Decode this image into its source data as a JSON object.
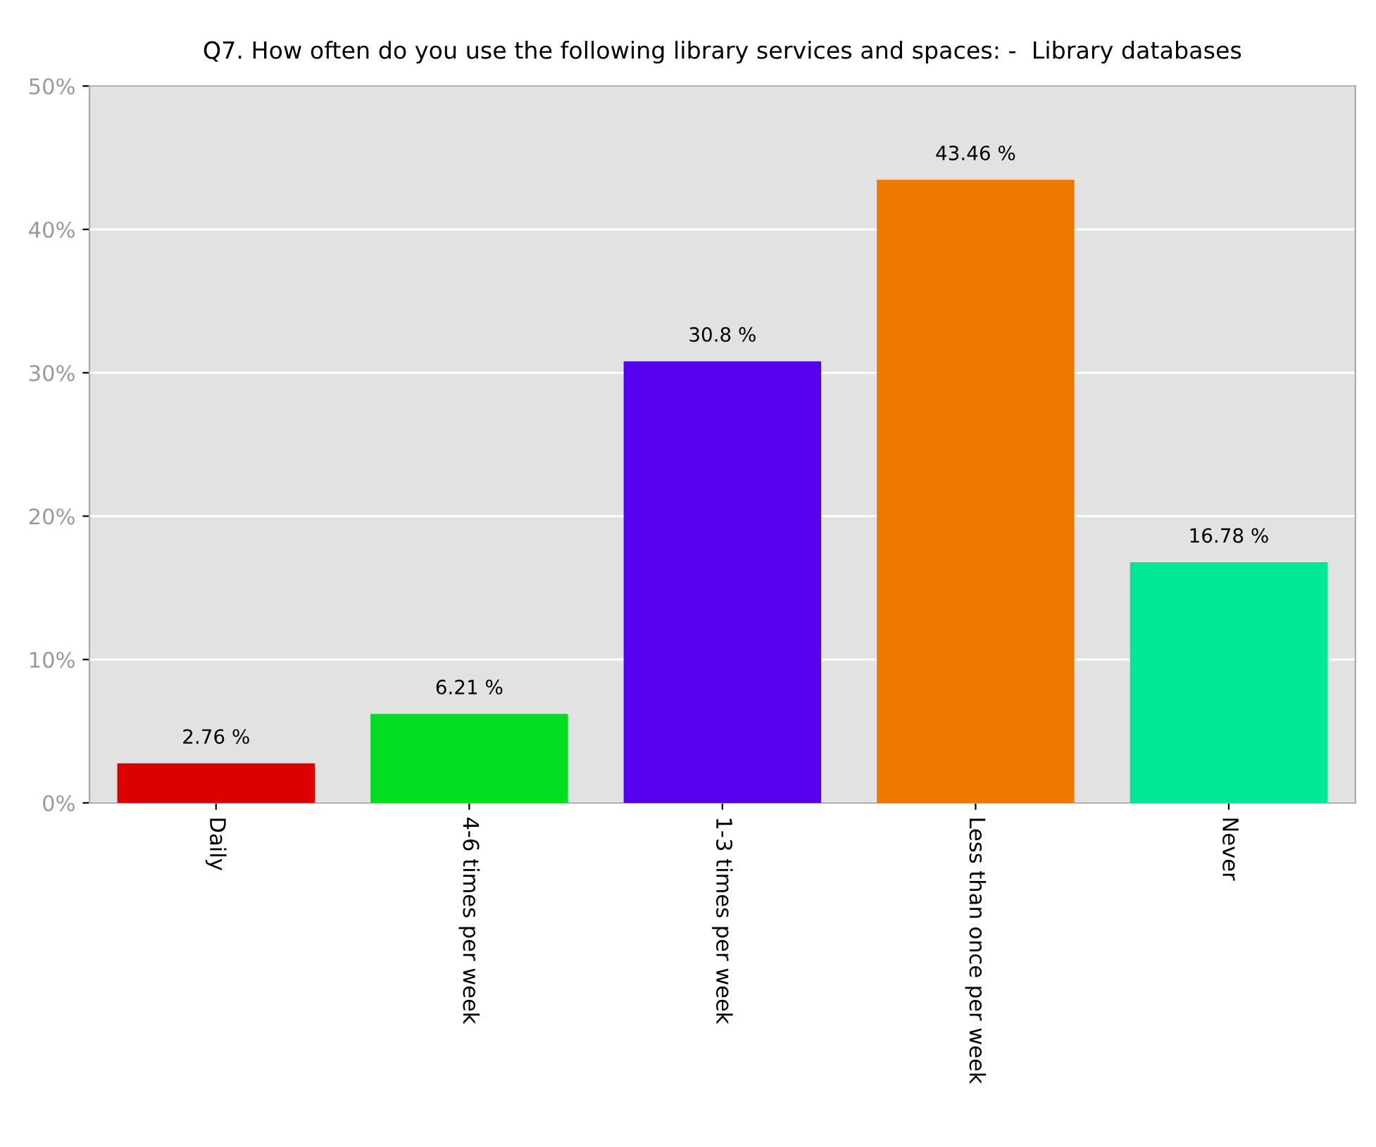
{
  "chart_data": {
    "type": "bar",
    "title": "Q7. How often do you use the following library services and spaces: -  Library databases",
    "categories": [
      "Daily",
      "4-6 times per week",
      "1-3 times per week",
      "Less than once per week",
      "Never"
    ],
    "values": [
      2.76,
      6.21,
      30.8,
      43.46,
      16.78
    ],
    "colors": [
      "#dd0000",
      "#00dd22",
      "#5500ee",
      "#ee7700",
      "#00e896"
    ],
    "value_labels": [
      "2.76 %",
      "6.21 %",
      "30.8 %",
      "43.46 %",
      "16.78 %"
    ],
    "ylim": [
      0,
      50
    ],
    "yticks": [
      {
        "value": 0,
        "label": "0%"
      },
      {
        "value": 10,
        "label": "10%"
      },
      {
        "value": 20,
        "label": "20%"
      },
      {
        "value": 30,
        "label": "30%"
      },
      {
        "value": 40,
        "label": "40%"
      },
      {
        "value": 50,
        "label": "50%"
      }
    ],
    "grid": "y"
  }
}
